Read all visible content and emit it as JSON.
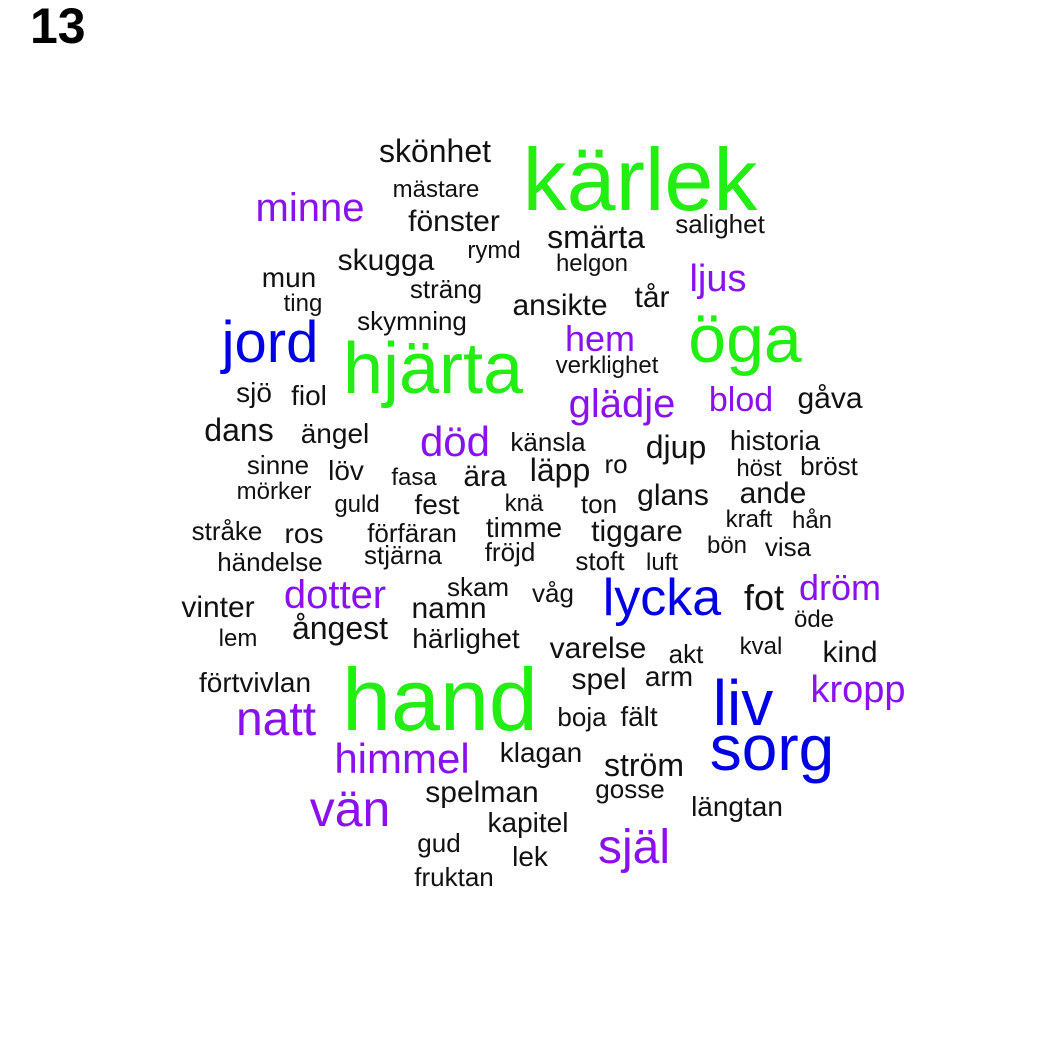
{
  "panel_label": "13",
  "palette": {
    "green": "#22ee11",
    "blue": "#0000e6",
    "purple": "#8811ee",
    "black": "#111111"
  },
  "words": [
    {
      "text": "kärlek",
      "color": "green"
    },
    {
      "text": "hand",
      "color": "green"
    },
    {
      "text": "hjärta",
      "color": "green"
    },
    {
      "text": "öga",
      "color": "green"
    },
    {
      "text": "sorg",
      "color": "blue"
    },
    {
      "text": "liv",
      "color": "blue"
    },
    {
      "text": "lycka",
      "color": "blue"
    },
    {
      "text": "jord",
      "color": "blue"
    },
    {
      "text": "natt",
      "color": "purple"
    },
    {
      "text": "vän",
      "color": "purple"
    },
    {
      "text": "själ",
      "color": "purple"
    },
    {
      "text": "himmel",
      "color": "purple"
    },
    {
      "text": "död",
      "color": "purple"
    },
    {
      "text": "glädje",
      "color": "purple"
    },
    {
      "text": "dotter",
      "color": "purple"
    },
    {
      "text": "kropp",
      "color": "purple"
    },
    {
      "text": "minne",
      "color": "purple"
    },
    {
      "text": "dröm",
      "color": "purple"
    },
    {
      "text": "ljus",
      "color": "purple"
    },
    {
      "text": "hem",
      "color": "purple"
    },
    {
      "text": "blod",
      "color": "purple"
    },
    {
      "text": "skönhet",
      "color": "black"
    },
    {
      "text": "mästare",
      "color": "black"
    },
    {
      "text": "fönster",
      "color": "black"
    },
    {
      "text": "smärta",
      "color": "black"
    },
    {
      "text": "salighet",
      "color": "black"
    },
    {
      "text": "skugga",
      "color": "black"
    },
    {
      "text": "rymd",
      "color": "black"
    },
    {
      "text": "helgon",
      "color": "black"
    },
    {
      "text": "mun",
      "color": "black"
    },
    {
      "text": "sträng",
      "color": "black"
    },
    {
      "text": "ansikte",
      "color": "black"
    },
    {
      "text": "tår",
      "color": "black"
    },
    {
      "text": "ting",
      "color": "black"
    },
    {
      "text": "skymning",
      "color": "black"
    },
    {
      "text": "verklighet",
      "color": "black"
    },
    {
      "text": "sjö",
      "color": "black"
    },
    {
      "text": "fiol",
      "color": "black"
    },
    {
      "text": "gåva",
      "color": "black"
    },
    {
      "text": "dans",
      "color": "black"
    },
    {
      "text": "ängel",
      "color": "black"
    },
    {
      "text": "känsla",
      "color": "black"
    },
    {
      "text": "djup",
      "color": "black"
    },
    {
      "text": "historia",
      "color": "black"
    },
    {
      "text": "sinne",
      "color": "black"
    },
    {
      "text": "löv",
      "color": "black"
    },
    {
      "text": "fasa",
      "color": "black"
    },
    {
      "text": "ära",
      "color": "black"
    },
    {
      "text": "läpp",
      "color": "black"
    },
    {
      "text": "ro",
      "color": "black"
    },
    {
      "text": "höst",
      "color": "black"
    },
    {
      "text": "bröst",
      "color": "black"
    },
    {
      "text": "mörker",
      "color": "black"
    },
    {
      "text": "guld",
      "color": "black"
    },
    {
      "text": "fest",
      "color": "black"
    },
    {
      "text": "knä",
      "color": "black"
    },
    {
      "text": "ton",
      "color": "black"
    },
    {
      "text": "glans",
      "color": "black"
    },
    {
      "text": "ande",
      "color": "black"
    },
    {
      "text": "stråke",
      "color": "black"
    },
    {
      "text": "ros",
      "color": "black"
    },
    {
      "text": "förfäran",
      "color": "black"
    },
    {
      "text": "timme",
      "color": "black"
    },
    {
      "text": "tiggare",
      "color": "black"
    },
    {
      "text": "kraft",
      "color": "black"
    },
    {
      "text": "hån",
      "color": "black"
    },
    {
      "text": "händelse",
      "color": "black"
    },
    {
      "text": "stjärna",
      "color": "black"
    },
    {
      "text": "fröjd",
      "color": "black"
    },
    {
      "text": "stoft",
      "color": "black"
    },
    {
      "text": "luft",
      "color": "black"
    },
    {
      "text": "bön",
      "color": "black"
    },
    {
      "text": "visa",
      "color": "black"
    },
    {
      "text": "skam",
      "color": "black"
    },
    {
      "text": "våg",
      "color": "black"
    },
    {
      "text": "fot",
      "color": "black"
    },
    {
      "text": "vinter",
      "color": "black"
    },
    {
      "text": "namn",
      "color": "black"
    },
    {
      "text": "öde",
      "color": "black"
    },
    {
      "text": "lem",
      "color": "black"
    },
    {
      "text": "ångest",
      "color": "black"
    },
    {
      "text": "härlighet",
      "color": "black"
    },
    {
      "text": "varelse",
      "color": "black"
    },
    {
      "text": "akt",
      "color": "black"
    },
    {
      "text": "kval",
      "color": "black"
    },
    {
      "text": "kind",
      "color": "black"
    },
    {
      "text": "förtvivlan",
      "color": "black"
    },
    {
      "text": "spel",
      "color": "black"
    },
    {
      "text": "arm",
      "color": "black"
    },
    {
      "text": "boja",
      "color": "black"
    },
    {
      "text": "fält",
      "color": "black"
    },
    {
      "text": "klagan",
      "color": "black"
    },
    {
      "text": "ström",
      "color": "black"
    },
    {
      "text": "spelman",
      "color": "black"
    },
    {
      "text": "gosse",
      "color": "black"
    },
    {
      "text": "längtan",
      "color": "black"
    },
    {
      "text": "kapitel",
      "color": "black"
    },
    {
      "text": "gud",
      "color": "black"
    },
    {
      "text": "lek",
      "color": "black"
    },
    {
      "text": "fruktan",
      "color": "black"
    }
  ]
}
